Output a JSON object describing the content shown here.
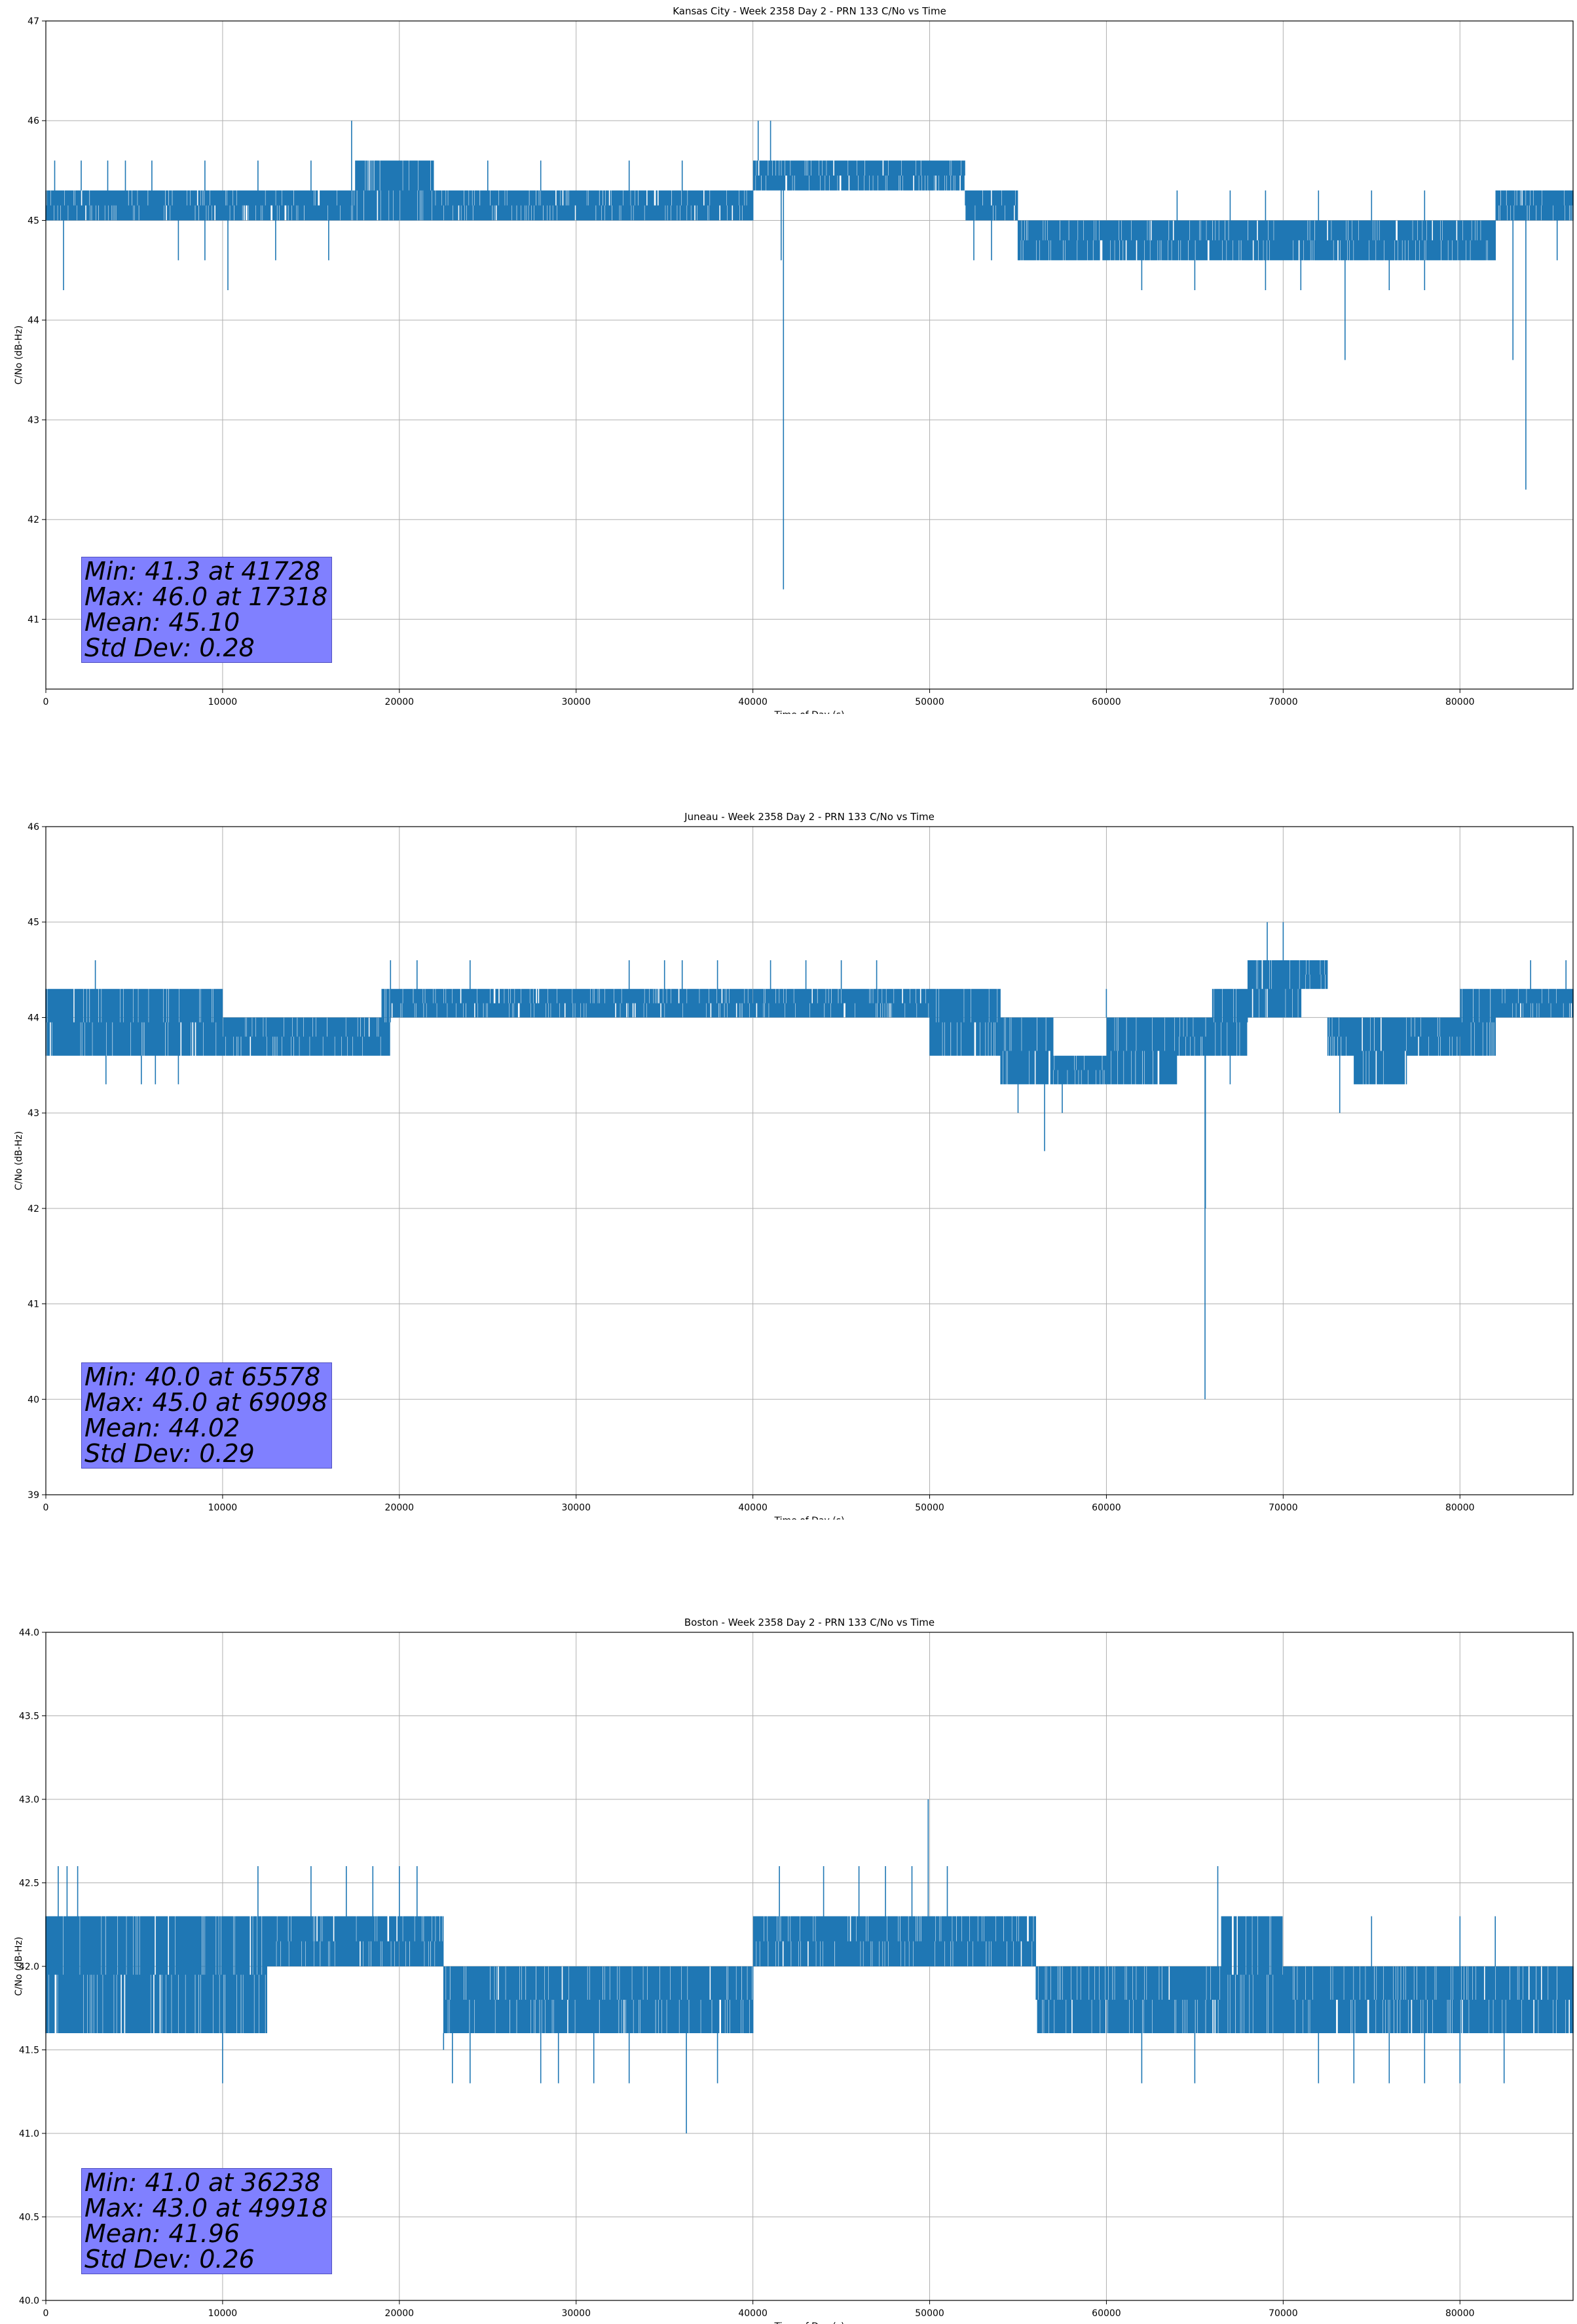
{
  "chart_data": [
    {
      "type": "line",
      "title": "Kansas City - Week 2358 Day 2 - PRN 133 C/No vs Time",
      "xlabel": "Time of Day (s)",
      "ylabel": "C/No (dB-Hz)",
      "xlim": [
        0,
        86400
      ],
      "ylim": [
        40.3,
        47
      ],
      "xticks": [
        0,
        10000,
        20000,
        30000,
        40000,
        50000,
        60000,
        70000,
        80000
      ],
      "yticks": [
        41,
        42,
        43,
        44,
        45,
        46,
        47
      ],
      "grid": true,
      "color": "#1f77b4",
      "series": [
        {
          "band": [
            [
              0,
              45.3,
              45.0
            ],
            [
              17000,
              45.3,
              45.0
            ],
            [
              17500,
              45.6,
              45.0
            ],
            [
              20000,
              45.6,
              45.0
            ],
            [
              22000,
              45.3,
              45.0
            ],
            [
              30000,
              45.3,
              45.0
            ],
            [
              40000,
              45.6,
              45.3
            ],
            [
              48000,
              45.6,
              45.3
            ],
            [
              52000,
              45.3,
              45.0
            ],
            [
              55000,
              45.0,
              44.6
            ],
            [
              58000,
              45.0,
              44.6
            ],
            [
              63000,
              45.0,
              44.6
            ],
            [
              66000,
              45.0,
              44.6
            ],
            [
              72000,
              45.0,
              44.6
            ],
            [
              80000,
              45.0,
              44.6
            ],
            [
              82000,
              45.3,
              45.0
            ],
            [
              86400,
              45.3,
              45.0
            ]
          ],
          "upspikes": [
            [
              500,
              45.6
            ],
            [
              2000,
              45.6
            ],
            [
              3500,
              45.6
            ],
            [
              4500,
              45.6
            ],
            [
              6000,
              45.6
            ],
            [
              9000,
              45.6
            ],
            [
              12000,
              45.6
            ],
            [
              15000,
              45.6
            ],
            [
              17300,
              46.0
            ],
            [
              25000,
              45.6
            ],
            [
              28000,
              45.6
            ],
            [
              33000,
              45.6
            ],
            [
              36000,
              45.6
            ],
            [
              40300,
              46.0
            ],
            [
              41000,
              46.0
            ],
            [
              44000,
              45.6
            ],
            [
              51000,
              45.6
            ],
            [
              64000,
              45.3
            ],
            [
              67000,
              45.3
            ],
            [
              69000,
              45.3
            ],
            [
              72000,
              45.3
            ],
            [
              75000,
              45.3
            ],
            [
              78000,
              45.3
            ]
          ],
          "downspikes": [
            [
              1000,
              44.3
            ],
            [
              7500,
              44.6
            ],
            [
              9000,
              44.6
            ],
            [
              10300,
              44.3
            ],
            [
              13000,
              44.6
            ],
            [
              16000,
              44.6
            ],
            [
              41728,
              41.3
            ],
            [
              41600,
              44.6
            ],
            [
              52500,
              44.6
            ],
            [
              53500,
              44.6
            ],
            [
              62000,
              44.3
            ],
            [
              65000,
              44.3
            ],
            [
              69000,
              44.3
            ],
            [
              71000,
              44.3
            ],
            [
              73500,
              43.6
            ],
            [
              76000,
              44.3
            ],
            [
              78000,
              44.3
            ],
            [
              83000,
              43.6
            ],
            [
              83728,
              42.3
            ],
            [
              85500,
              44.6
            ]
          ]
        }
      ],
      "stats": {
        "min": "Min: 41.3 at 41728",
        "max": "Max: 46.0 at 17318",
        "mean": "Mean: 45.10",
        "std": "Std Dev: 0.28"
      }
    },
    {
      "type": "line",
      "title": "Juneau - Week 2358 Day 2 - PRN 133 C/No vs Time",
      "xlabel": "Time of Day (s)",
      "ylabel": "C/No (dB-Hz)",
      "xlim": [
        0,
        86400
      ],
      "ylim": [
        39,
        46
      ],
      "xticks": [
        0,
        10000,
        20000,
        30000,
        40000,
        50000,
        60000,
        70000,
        80000
      ],
      "yticks": [
        39,
        40,
        41,
        42,
        43,
        44,
        45,
        46
      ],
      "grid": true,
      "color": "#1f77b4",
      "series": [
        {
          "band": [
            [
              0,
              44.3,
              43.6
            ],
            [
              10000,
              44.0,
              43.6
            ],
            [
              19000,
              44.3,
              43.6
            ],
            [
              19500,
              44.3,
              44.0
            ],
            [
              30000,
              44.3,
              44.0
            ],
            [
              35000,
              44.3,
              44.0
            ],
            [
              40000,
              44.3,
              44.0
            ],
            [
              50000,
              44.3,
              43.6
            ],
            [
              54000,
              44.0,
              43.3
            ],
            [
              57000,
              43.6,
              43.3
            ],
            [
              60000,
              44.0,
              43.3
            ],
            [
              64000,
              44.0,
              43.6
            ],
            [
              66000,
              44.3,
              43.6
            ],
            [
              68000,
              44.6,
              44.0
            ],
            [
              71000,
              44.6,
              44.3
            ],
            [
              72500,
              44.0,
              43.6
            ],
            [
              74000,
              44.0,
              43.3
            ],
            [
              77000,
              44.0,
              43.6
            ],
            [
              80000,
              44.3,
              43.6
            ],
            [
              82000,
              44.3,
              44.0
            ],
            [
              86400,
              44.3,
              44.0
            ]
          ],
          "upspikes": [
            [
              2000,
              44.3
            ],
            [
              2800,
              44.6
            ],
            [
              19500,
              44.6
            ],
            [
              21000,
              44.6
            ],
            [
              24000,
              44.6
            ],
            [
              33000,
              44.6
            ],
            [
              35000,
              44.6
            ],
            [
              36000,
              44.6
            ],
            [
              38000,
              44.6
            ],
            [
              41000,
              44.6
            ],
            [
              43000,
              44.6
            ],
            [
              45000,
              44.6
            ],
            [
              47000,
              44.6
            ],
            [
              50000,
              44.3
            ],
            [
              60000,
              44.3
            ],
            [
              69098,
              45.0
            ],
            [
              70000,
              45.0
            ],
            [
              80000,
              44.3
            ],
            [
              84000,
              44.6
            ],
            [
              86000,
              44.6
            ]
          ],
          "downspikes": [
            [
              3400,
              43.3
            ],
            [
              5400,
              43.3
            ],
            [
              6200,
              43.3
            ],
            [
              7500,
              43.3
            ],
            [
              55000,
              43.0
            ],
            [
              56500,
              42.6
            ],
            [
              57500,
              43.0
            ],
            [
              61000,
              43.3
            ],
            [
              63000,
              43.3
            ],
            [
              65578,
              40.0
            ],
            [
              65600,
              42.0
            ],
            [
              67000,
              43.3
            ],
            [
              73200,
              43.0
            ]
          ]
        }
      ],
      "stats": {
        "min": "Min: 40.0 at 65578",
        "max": "Max: 45.0 at 69098",
        "mean": "Mean: 44.02",
        "std": "Std Dev: 0.29"
      }
    },
    {
      "type": "line",
      "title": "Boston - Week 2358 Day 2 - PRN 133 C/No vs Time",
      "xlabel": "Time of Day (s)",
      "ylabel": "C/No (dB-Hz)",
      "xlim": [
        0,
        86400
      ],
      "ylim": [
        40.0,
        44.0
      ],
      "xticks": [
        0,
        10000,
        20000,
        30000,
        40000,
        50000,
        60000,
        70000,
        80000
      ],
      "yticks": [
        "40.0",
        "40.5",
        "41.0",
        "41.5",
        "42.0",
        "42.5",
        "43.0",
        "43.5",
        "44.0"
      ],
      "grid": true,
      "color": "#1f77b4",
      "series": [
        {
          "band": [
            [
              0,
              42.3,
              41.6
            ],
            [
              12000,
              42.3,
              41.6
            ],
            [
              12500,
              42.3,
              42.0
            ],
            [
              22000,
              42.3,
              42.0
            ],
            [
              22500,
              42.0,
              41.6
            ],
            [
              30000,
              42.0,
              41.6
            ],
            [
              39500,
              42.0,
              41.6
            ],
            [
              40000,
              42.3,
              42.0
            ],
            [
              48000,
              42.3,
              42.0
            ],
            [
              55500,
              42.3,
              42.0
            ],
            [
              56000,
              42.0,
              41.6
            ],
            [
              66000,
              42.0,
              41.6
            ],
            [
              66500,
              42.3,
              41.6
            ],
            [
              69500,
              42.3,
              41.6
            ],
            [
              70000,
              42.0,
              41.6
            ],
            [
              80000,
              42.0,
              41.6
            ],
            [
              86400,
              42.0,
              41.6
            ]
          ],
          "upspikes": [
            [
              700,
              42.6
            ],
            [
              1200,
              42.6
            ],
            [
              1800,
              42.6
            ],
            [
              12000,
              42.6
            ],
            [
              15000,
              42.6
            ],
            [
              17000,
              42.6
            ],
            [
              18500,
              42.6
            ],
            [
              20000,
              42.6
            ],
            [
              21000,
              42.6
            ],
            [
              41500,
              42.6
            ],
            [
              44000,
              42.6
            ],
            [
              46000,
              42.6
            ],
            [
              47500,
              42.6
            ],
            [
              49000,
              42.6
            ],
            [
              49918,
              43.0
            ],
            [
              51000,
              42.6
            ],
            [
              66300,
              42.6
            ],
            [
              75000,
              42.3
            ],
            [
              80000,
              42.3
            ],
            [
              82000,
              42.3
            ]
          ],
          "downspikes": [
            [
              10000,
              41.3
            ],
            [
              22500,
              41.5
            ],
            [
              23000,
              41.3
            ],
            [
              24000,
              41.3
            ],
            [
              28000,
              41.3
            ],
            [
              29000,
              41.3
            ],
            [
              31000,
              41.3
            ],
            [
              33000,
              41.3
            ],
            [
              36238,
              41.0
            ],
            [
              38000,
              41.3
            ],
            [
              62000,
              41.3
            ],
            [
              65000,
              41.3
            ],
            [
              72000,
              41.3
            ],
            [
              74000,
              41.3
            ],
            [
              76000,
              41.3
            ],
            [
              78000,
              41.3
            ],
            [
              80000,
              41.3
            ],
            [
              82500,
              41.3
            ]
          ]
        }
      ],
      "stats": {
        "min": "Min: 41.0 at 36238",
        "max": "Max: 43.0 at 49918",
        "mean": "Mean: 41.96",
        "std": "Std Dev: 0.26"
      }
    }
  ]
}
